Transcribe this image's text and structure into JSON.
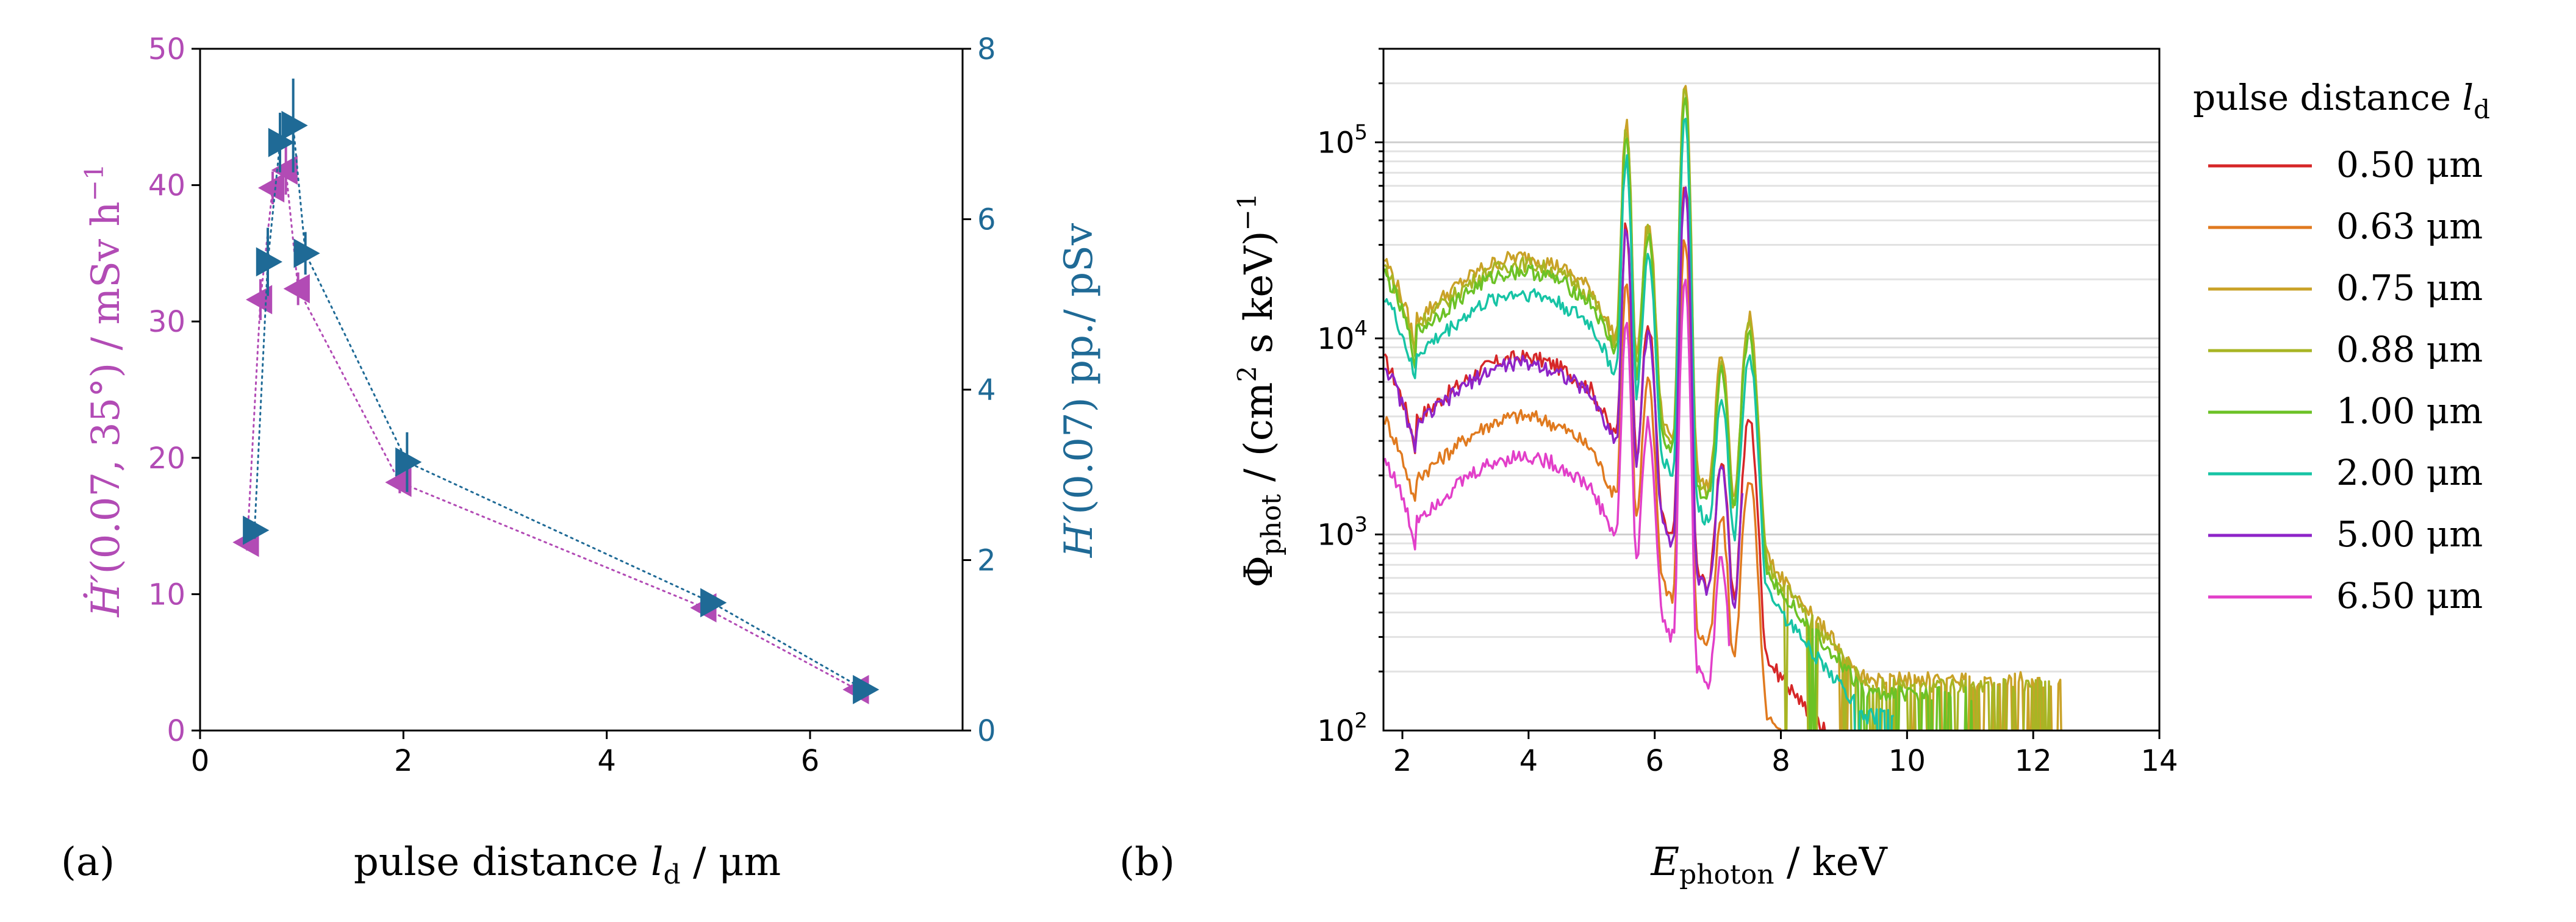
{
  "colors": {
    "left_axis": "#b24bb5",
    "right_axis": "#1f6a96",
    "frame": "#000000"
  },
  "chart_data": [
    {
      "type": "scatter",
      "panel_label": "(a)",
      "xlabel": "pulse distance l_d / μm",
      "xlabel_parts": {
        "main": "pulse distance ",
        "var": "l",
        "sub": "d",
        "unit": " / μm"
      },
      "ylabel_left": "Ḣ′(0.07, 35°) / mSv h⁻¹",
      "ylabel_left_parts": {
        "var": "Ḣ′",
        "main": "(0.07, 35°) / mSv h",
        "sup": "−1"
      },
      "ylabel_right": "H′(0.07) pp./ pSv",
      "ylabel_right_parts": {
        "var": "H′",
        "main": "(0.07) pp./ pSv"
      },
      "xlim": [
        0,
        7.5
      ],
      "ylim_left": [
        0,
        50
      ],
      "ylim_right": [
        0,
        8
      ],
      "xticks": [
        "0",
        "2",
        "4",
        "6"
      ],
      "yticks_left": [
        "0",
        "10",
        "20",
        "30",
        "40",
        "50"
      ],
      "yticks_right": [
        "0",
        "2",
        "4",
        "6",
        "8"
      ],
      "series": [
        {
          "name": "Ḣ′(0.07, 35°)",
          "axis": "left",
          "color": "#b24bb5",
          "marker": "left-triangle",
          "x": [
            0.5,
            0.63,
            0.75,
            0.88,
            1.0,
            2.0,
            5.0,
            6.5
          ],
          "y": [
            13.8,
            31.6,
            39.8,
            41.1,
            32.4,
            18.2,
            9.0,
            3.0
          ],
          "err": [
            0.6,
            1.5,
            1.2,
            1.8,
            1.2,
            0.8,
            0.4,
            0.2
          ]
        },
        {
          "name": "H′(0.07) pp.",
          "axis": "right",
          "color": "#1f6a96",
          "marker": "right-triangle",
          "x": [
            0.5,
            0.63,
            0.75,
            0.88,
            1.0,
            2.0,
            5.0,
            6.5
          ],
          "y": [
            2.35,
            5.5,
            6.9,
            7.1,
            5.6,
            3.15,
            1.5,
            0.48
          ],
          "err": [
            0.1,
            0.4,
            0.35,
            0.55,
            0.25,
            0.35,
            0.06,
            0.04
          ]
        }
      ]
    },
    {
      "type": "line",
      "panel_label": "(b)",
      "xlabel": "E_photon / keV",
      "xlabel_parts": {
        "var": "E",
        "sub": "photon",
        "unit": " / keV"
      },
      "ylabel": "Φ_phot / (cm² s keV)⁻¹",
      "ylabel_parts": {
        "var": "Φ",
        "sub": "phot",
        "main": " / (cm",
        "sup1": "2",
        "main2": " s keV)",
        "sup2": "−1"
      },
      "xlim": [
        1.7,
        14
      ],
      "ylim": [
        100,
        300000
      ],
      "yscale": "log",
      "xticks": [
        "2",
        "4",
        "6",
        "8",
        "10",
        "12",
        "14"
      ],
      "yticks": [
        {
          "base": "10",
          "exp": "2"
        },
        {
          "base": "10",
          "exp": "3"
        },
        {
          "base": "10",
          "exp": "4"
        },
        {
          "base": "10",
          "exp": "5"
        }
      ],
      "grid": true,
      "legend_title": "pulse distance l_d",
      "legend_title_parts": {
        "main": "pulse distance ",
        "var": "l",
        "sub": "d"
      },
      "legend_position": "outside-right",
      "series": [
        {
          "name": "0.50 μm",
          "color": "#d62728",
          "scale": 8000,
          "cutoff": 11.0
        },
        {
          "name": "0.63 μm",
          "color": "#e07a1f",
          "scale": 4000,
          "cutoff": 13.2
        },
        {
          "name": "0.75 μm",
          "color": "#c9a227",
          "scale": 26000,
          "cutoff": 12.5
        },
        {
          "name": "0.88 μm",
          "color": "#a8b524",
          "scale": 24000,
          "cutoff": 12.3
        },
        {
          "name": "1.00 μm",
          "color": "#6cc226",
          "scale": 22000,
          "cutoff": 11.1
        },
        {
          "name": "2.00 μm",
          "color": "#17c4a5",
          "scale": 17000,
          "cutoff": 9.8
        },
        {
          "name": "5.00 μm",
          "color": "#8e24c8",
          "scale": 7500,
          "cutoff": 7.4
        },
        {
          "name": "6.50 μm",
          "color": "#e23fc9",
          "scale": 2500,
          "cutoff": 7.2
        }
      ]
    }
  ]
}
